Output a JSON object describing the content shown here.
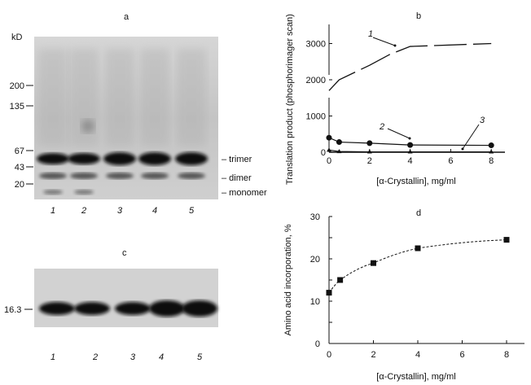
{
  "panel_a": {
    "label": "a",
    "unit": "kD",
    "markers": [
      "200",
      "135",
      "67",
      "43",
      "20"
    ],
    "bands": [
      "trimer",
      "dimer",
      "monomer"
    ],
    "lanes": [
      "1",
      "2",
      "3",
      "4",
      "5"
    ]
  },
  "panel_c": {
    "label": "c",
    "marker": "16.3",
    "lanes": [
      "1",
      "2",
      "3",
      "4",
      "5"
    ]
  },
  "chart_data": [
    {
      "panel": "b",
      "type": "line",
      "xlabel": "[α-Crystallin], mg/ml",
      "ylabel": "Translation product (phosphorimager scan)",
      "xlim": [
        0,
        8.5
      ],
      "ylim": [
        0,
        3500
      ],
      "broken_y_axis": true,
      "xticks": [
        "0",
        "2",
        "4",
        "6",
        "8"
      ],
      "yticks": [
        "0",
        "1000",
        "2000",
        "3000"
      ],
      "series": [
        {
          "name": "1",
          "marker": "none",
          "x": [
            0,
            0.5,
            2,
            3,
            4,
            8
          ],
          "y": [
            1700,
            2000,
            2400,
            2700,
            2920,
            3000
          ]
        },
        {
          "name": "2",
          "marker": "circle",
          "x": [
            0,
            0.5,
            2,
            4,
            8
          ],
          "y": [
            400,
            280,
            250,
            200,
            190
          ]
        },
        {
          "name": "3",
          "marker": "triangle",
          "x": [
            0,
            0.5,
            2,
            4,
            8
          ],
          "y": [
            60,
            20,
            10,
            10,
            10
          ]
        }
      ]
    },
    {
      "panel": "d",
      "type": "line",
      "xlabel": "[α-Crystallin], mg/ml",
      "ylabel": "Amino acid incorporation, %",
      "xlim": [
        0,
        8.5
      ],
      "ylim": [
        0,
        30
      ],
      "xticks": [
        "0",
        "2",
        "4",
        "6",
        "8"
      ],
      "yticks": [
        "0",
        "10",
        "20",
        "30"
      ],
      "series": [
        {
          "marker": "square",
          "line": "dashed",
          "x": [
            0,
            0.5,
            2,
            4,
            8
          ],
          "y": [
            12,
            15,
            19,
            22.5,
            24.5
          ]
        }
      ]
    }
  ]
}
